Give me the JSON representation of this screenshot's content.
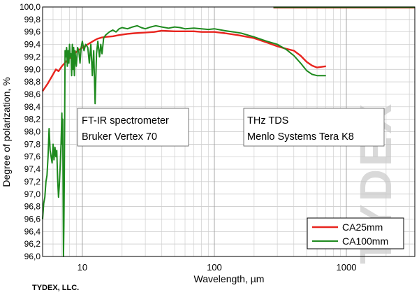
{
  "footer": {
    "company": "TYDEX, LLC."
  },
  "watermark": {
    "text": "TYDEX"
  },
  "annotations": [
    {
      "lines": [
        "FT-IR spectrometer",
        "Bruker Vertex 70"
      ]
    },
    {
      "lines": [
        "THz TDS",
        "Menlo Systems Tera K8"
      ]
    }
  ],
  "chart_data": {
    "type": "line",
    "xscale": "log",
    "xlim": [
      5,
      3300
    ],
    "ylim": [
      96.0,
      100.0
    ],
    "xlabel": "Wavelength, µm",
    "ylabel": "Degree of polarization, %",
    "grid": true,
    "legend_position": "bottom-right",
    "xticks": [
      "10",
      "100",
      "1000"
    ],
    "yticks": [
      "96,0",
      "96,2",
      "96,4",
      "96,6",
      "96,8",
      "97,0",
      "97,2",
      "97,4",
      "97,6",
      "97,8",
      "98,0",
      "98,2",
      "98,4",
      "98,6",
      "98,8",
      "99,0",
      "99,2",
      "99,4",
      "99,6",
      "99,8",
      "100,0"
    ],
    "series": [
      {
        "name": "CA25mm",
        "color": "#e8251f",
        "segments": [
          {
            "x": [
              5,
              5.5,
              6,
              6.3,
              6.6,
              7,
              7.5,
              8,
              8.5,
              9,
              10,
              11,
              12,
              13,
              14,
              15,
              17,
              19,
              22,
              25,
              30,
              35,
              40,
              50,
              60,
              70,
              80,
              100,
              120,
              150,
              200,
              250,
              300,
              350,
              400,
              450,
              500,
              550,
              600,
              700
            ],
            "y": [
              98.65,
              98.78,
              98.92,
              99.0,
              98.97,
              99.05,
              99.12,
              99.18,
              99.23,
              99.28,
              99.35,
              99.4,
              99.45,
              99.49,
              99.51,
              99.52,
              99.53,
              99.55,
              99.57,
              99.58,
              99.59,
              99.6,
              99.62,
              99.61,
              99.61,
              99.61,
              99.6,
              99.6,
              99.58,
              99.55,
              99.5,
              99.43,
              99.37,
              99.33,
              99.3,
              99.22,
              99.12,
              99.06,
              99.03,
              99.05
            ]
          },
          {
            "x": [
              280,
              500,
              1000,
              2000,
              3300
            ],
            "y": [
              99.99,
              99.99,
              99.99,
              99.99,
              99.99
            ]
          }
        ]
      },
      {
        "name": "CA100mm",
        "color": "#1e8a1e",
        "segments": [
          {
            "x": [
              5,
              5.1,
              5.2,
              5.3,
              5.4,
              5.5,
              5.6,
              5.7,
              5.8,
              5.9,
              6.0,
              6.1,
              6.2,
              6.3,
              6.4,
              6.5,
              6.6,
              6.7,
              6.8,
              6.9,
              7.0,
              7.05,
              7.1,
              7.15,
              7.2,
              7.25,
              7.3,
              7.35,
              7.4,
              7.5,
              7.6,
              7.7,
              7.8,
              7.9,
              8.0,
              8.1,
              8.2,
              8.3,
              8.4,
              8.5,
              8.6,
              8.7,
              8.8,
              9.0,
              9.2,
              9.4,
              9.6,
              9.8,
              10.0,
              10.3,
              10.6,
              11.0,
              11.3,
              11.6,
              11.9,
              12.2,
              12.5,
              12.8,
              13.1,
              13.5,
              13.8,
              14.1,
              14.5,
              15,
              16,
              17,
              18,
              19,
              20,
              22,
              24,
              26,
              28,
              30,
              33,
              36,
              40,
              45,
              50,
              55,
              60,
              70,
              80,
              90,
              100,
              120,
              140,
              160,
              200,
              250,
              300,
              350,
              400,
              450,
              500,
              550,
              600,
              700
            ],
            "y": [
              96.6,
              96.85,
              96.95,
              97.2,
              97.3,
              97.6,
              98.05,
              97.7,
              97.6,
              97.5,
              97.8,
              97.55,
              97.75,
              97.6,
              97.7,
              97.25,
              96.95,
              97.15,
              97.45,
              97.8,
              98.3,
              97.8,
              98.2,
              97.0,
              96.0,
              96.5,
              97.3,
              98.2,
              99.3,
              99.2,
              99.35,
              99.05,
              99.3,
              99.1,
              99.4,
              99.2,
              99.25,
              98.9,
              99.4,
              99.0,
              99.35,
              98.9,
              99.3,
              99.05,
              99.35,
              99.3,
              99.1,
              99.35,
              99.45,
              99.3,
              99.4,
              99.35,
              99.1,
              99.4,
              98.9,
              99.3,
              98.45,
              99.25,
              99.45,
              99.2,
              99.4,
              99.25,
              99.5,
              99.55,
              99.6,
              99.63,
              99.6,
              99.65,
              99.67,
              99.65,
              99.68,
              99.7,
              99.67,
              99.65,
              99.68,
              99.7,
              99.68,
              99.66,
              99.68,
              99.67,
              99.65,
              99.66,
              99.65,
              99.64,
              99.65,
              99.62,
              99.6,
              99.58,
              99.52,
              99.45,
              99.4,
              99.32,
              99.22,
              99.1,
              98.98,
              98.92,
              98.9,
              98.9
            ]
          },
          {
            "x": [
              280,
              500,
              1000,
              2000,
              3300
            ],
            "y": [
              99.995,
              99.995,
              99.995,
              99.995,
              99.995
            ]
          }
        ]
      }
    ]
  }
}
